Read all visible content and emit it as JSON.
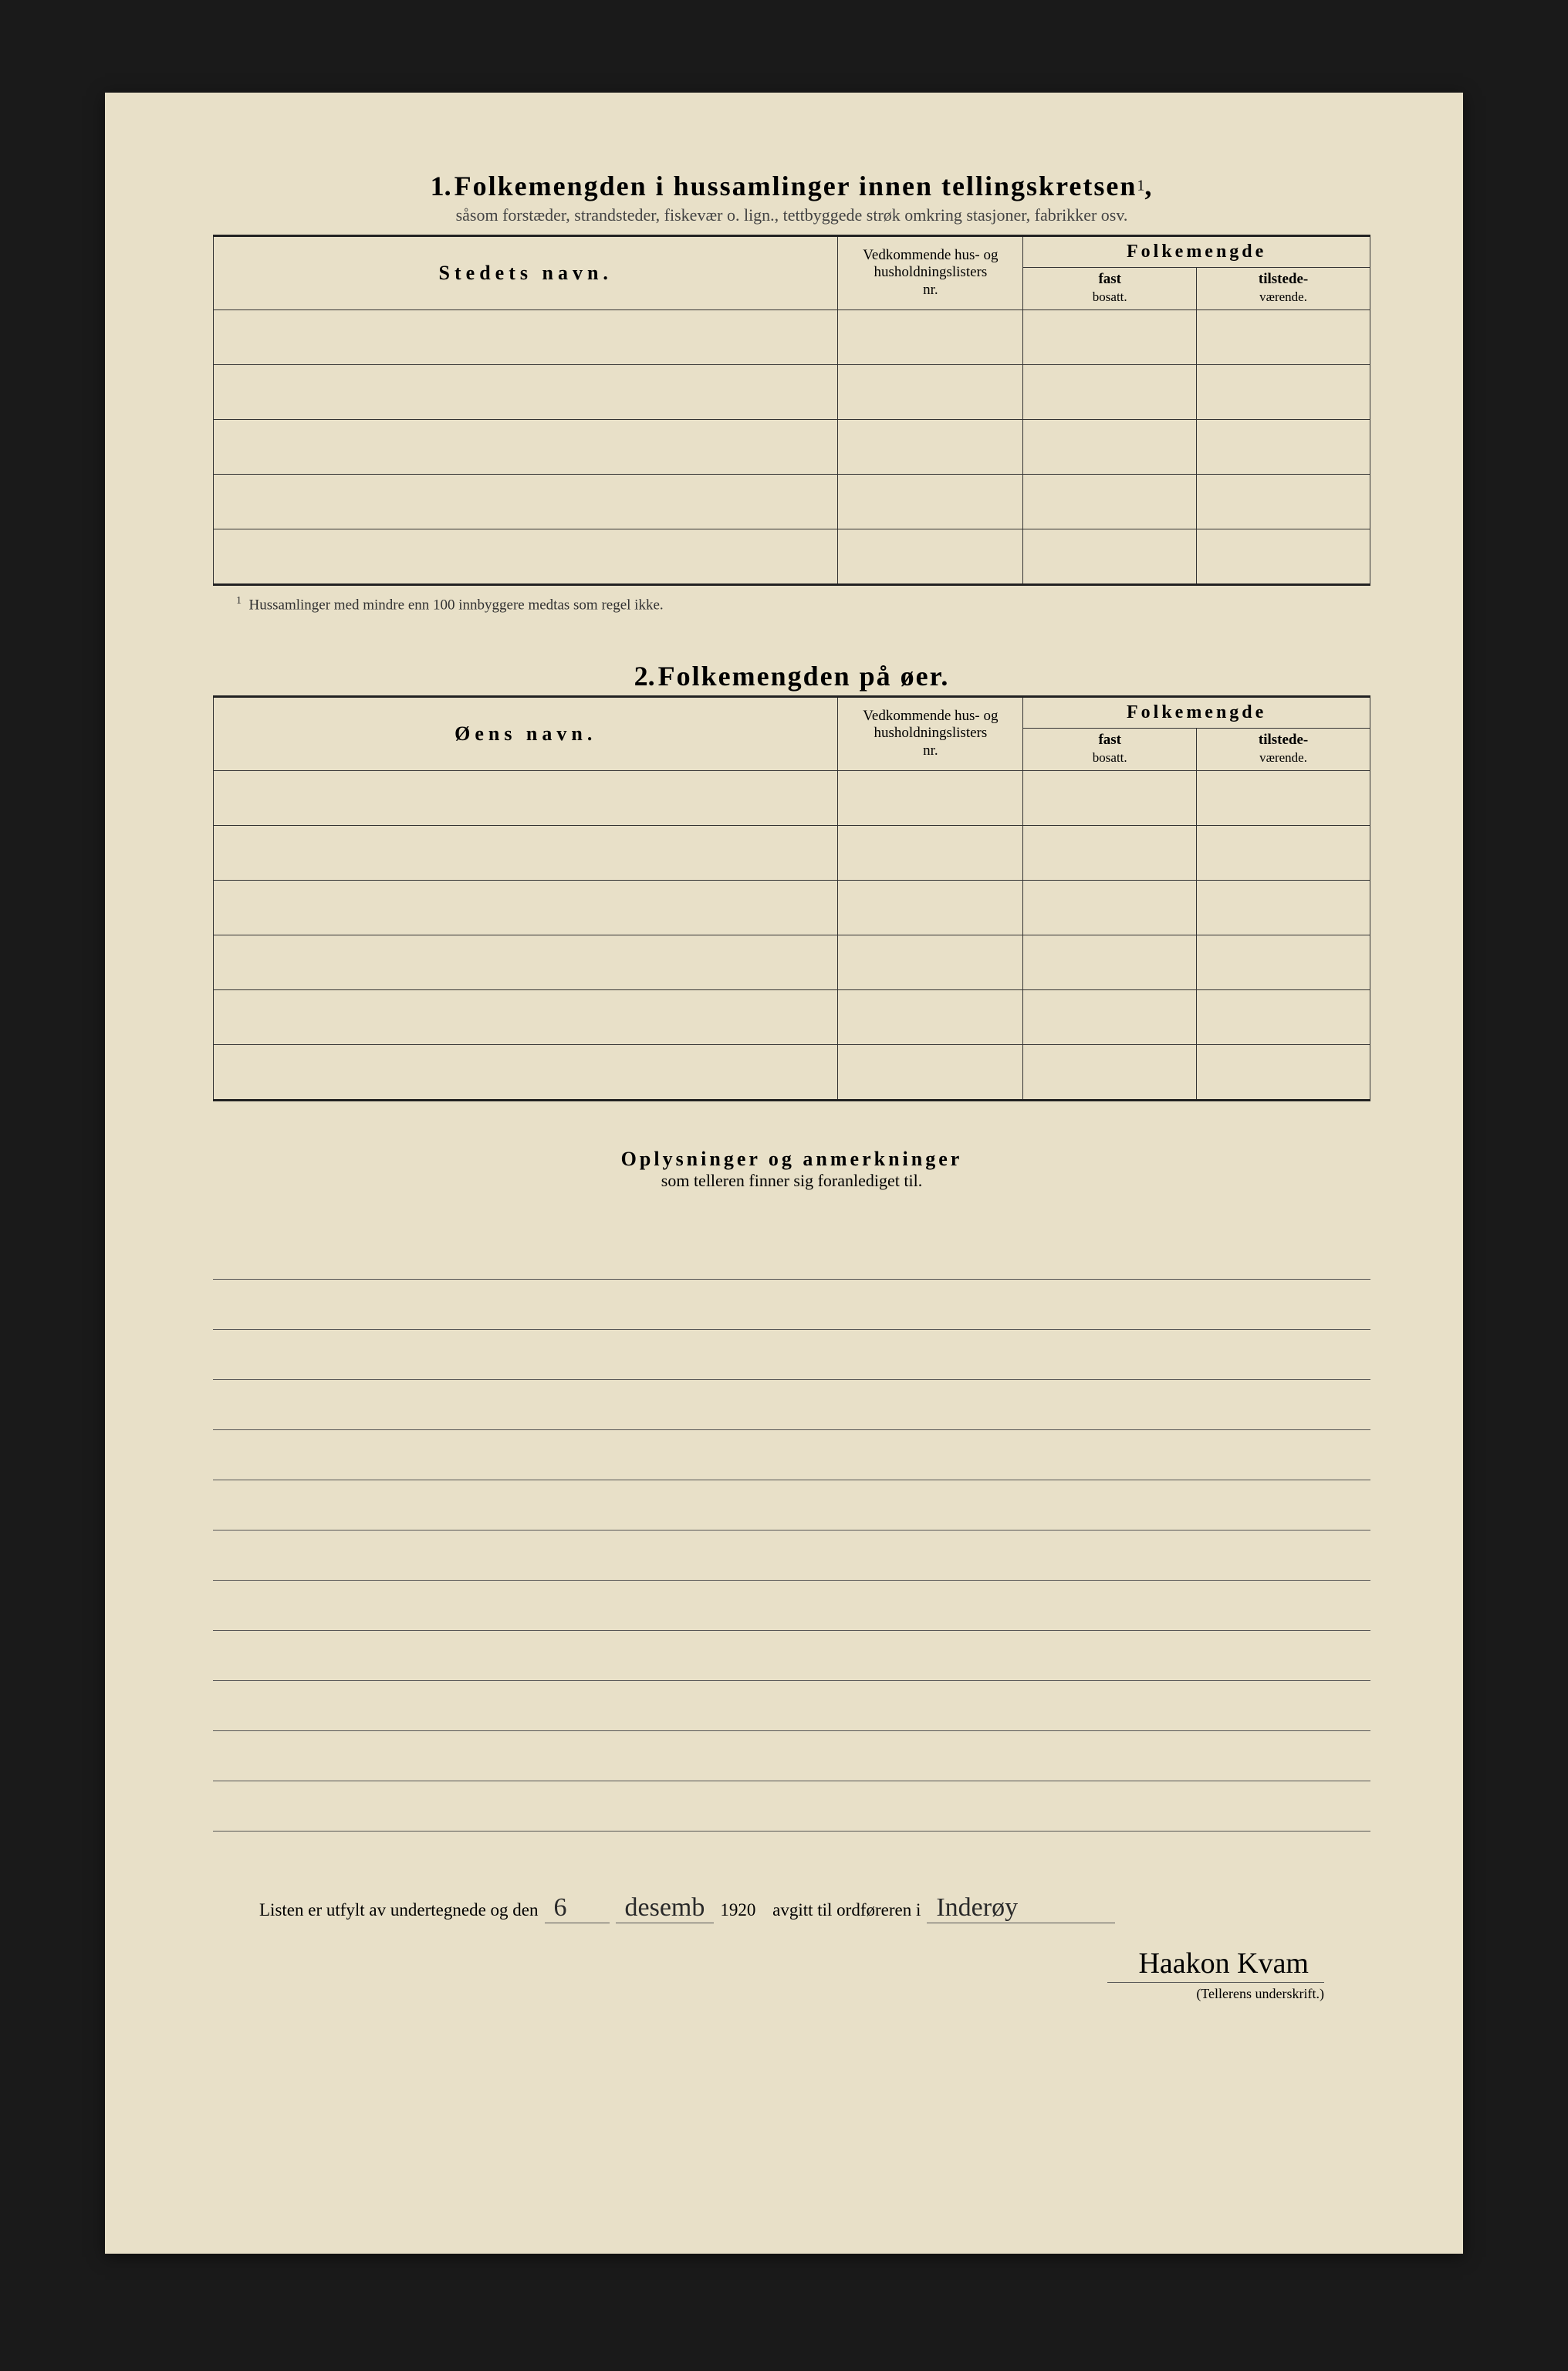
{
  "section1": {
    "number": "1.",
    "title": "Folkemengden i hussamlinger innen tellingskretsen",
    "title_sup": "1",
    "subtitle": "såsom forstæder, strandsteder, fiskevær o. lign., tettbyggede strøk omkring stasjoner, fabrikker osv.",
    "col_name": "Stedets navn.",
    "col_vedkom_l1": "Vedkommende hus- og",
    "col_vedkom_l2": "husholdningslisters",
    "col_vedkom_l3": "nr.",
    "col_folkemengde": "Folkemengde",
    "col_fast_l1": "fast",
    "col_fast_l2": "bosatt.",
    "col_tilst_l1": "tilstede-",
    "col_tilst_l2": "værende.",
    "footnote_marker": "1",
    "footnote": "Hussamlinger med mindre enn 100 innbyggere medtas som regel ikke.",
    "row_count": 5
  },
  "section2": {
    "number": "2.",
    "title": "Folkemengden på øer.",
    "col_name": "Øens navn.",
    "row_count": 6
  },
  "oplysninger": {
    "title": "Oplysninger og anmerkninger",
    "subtitle": "som telleren finner sig foranlediget til.",
    "line_count": 12
  },
  "signature": {
    "prefix": "Listen er utfylt av undertegnede og den",
    "day": "6",
    "month": "desemb",
    "year": "1920",
    "mid": "avgitt til ordføreren i",
    "place": "Inderøy",
    "name": "Haakon Kvam",
    "caption": "(Tellerens underskrift.)"
  }
}
